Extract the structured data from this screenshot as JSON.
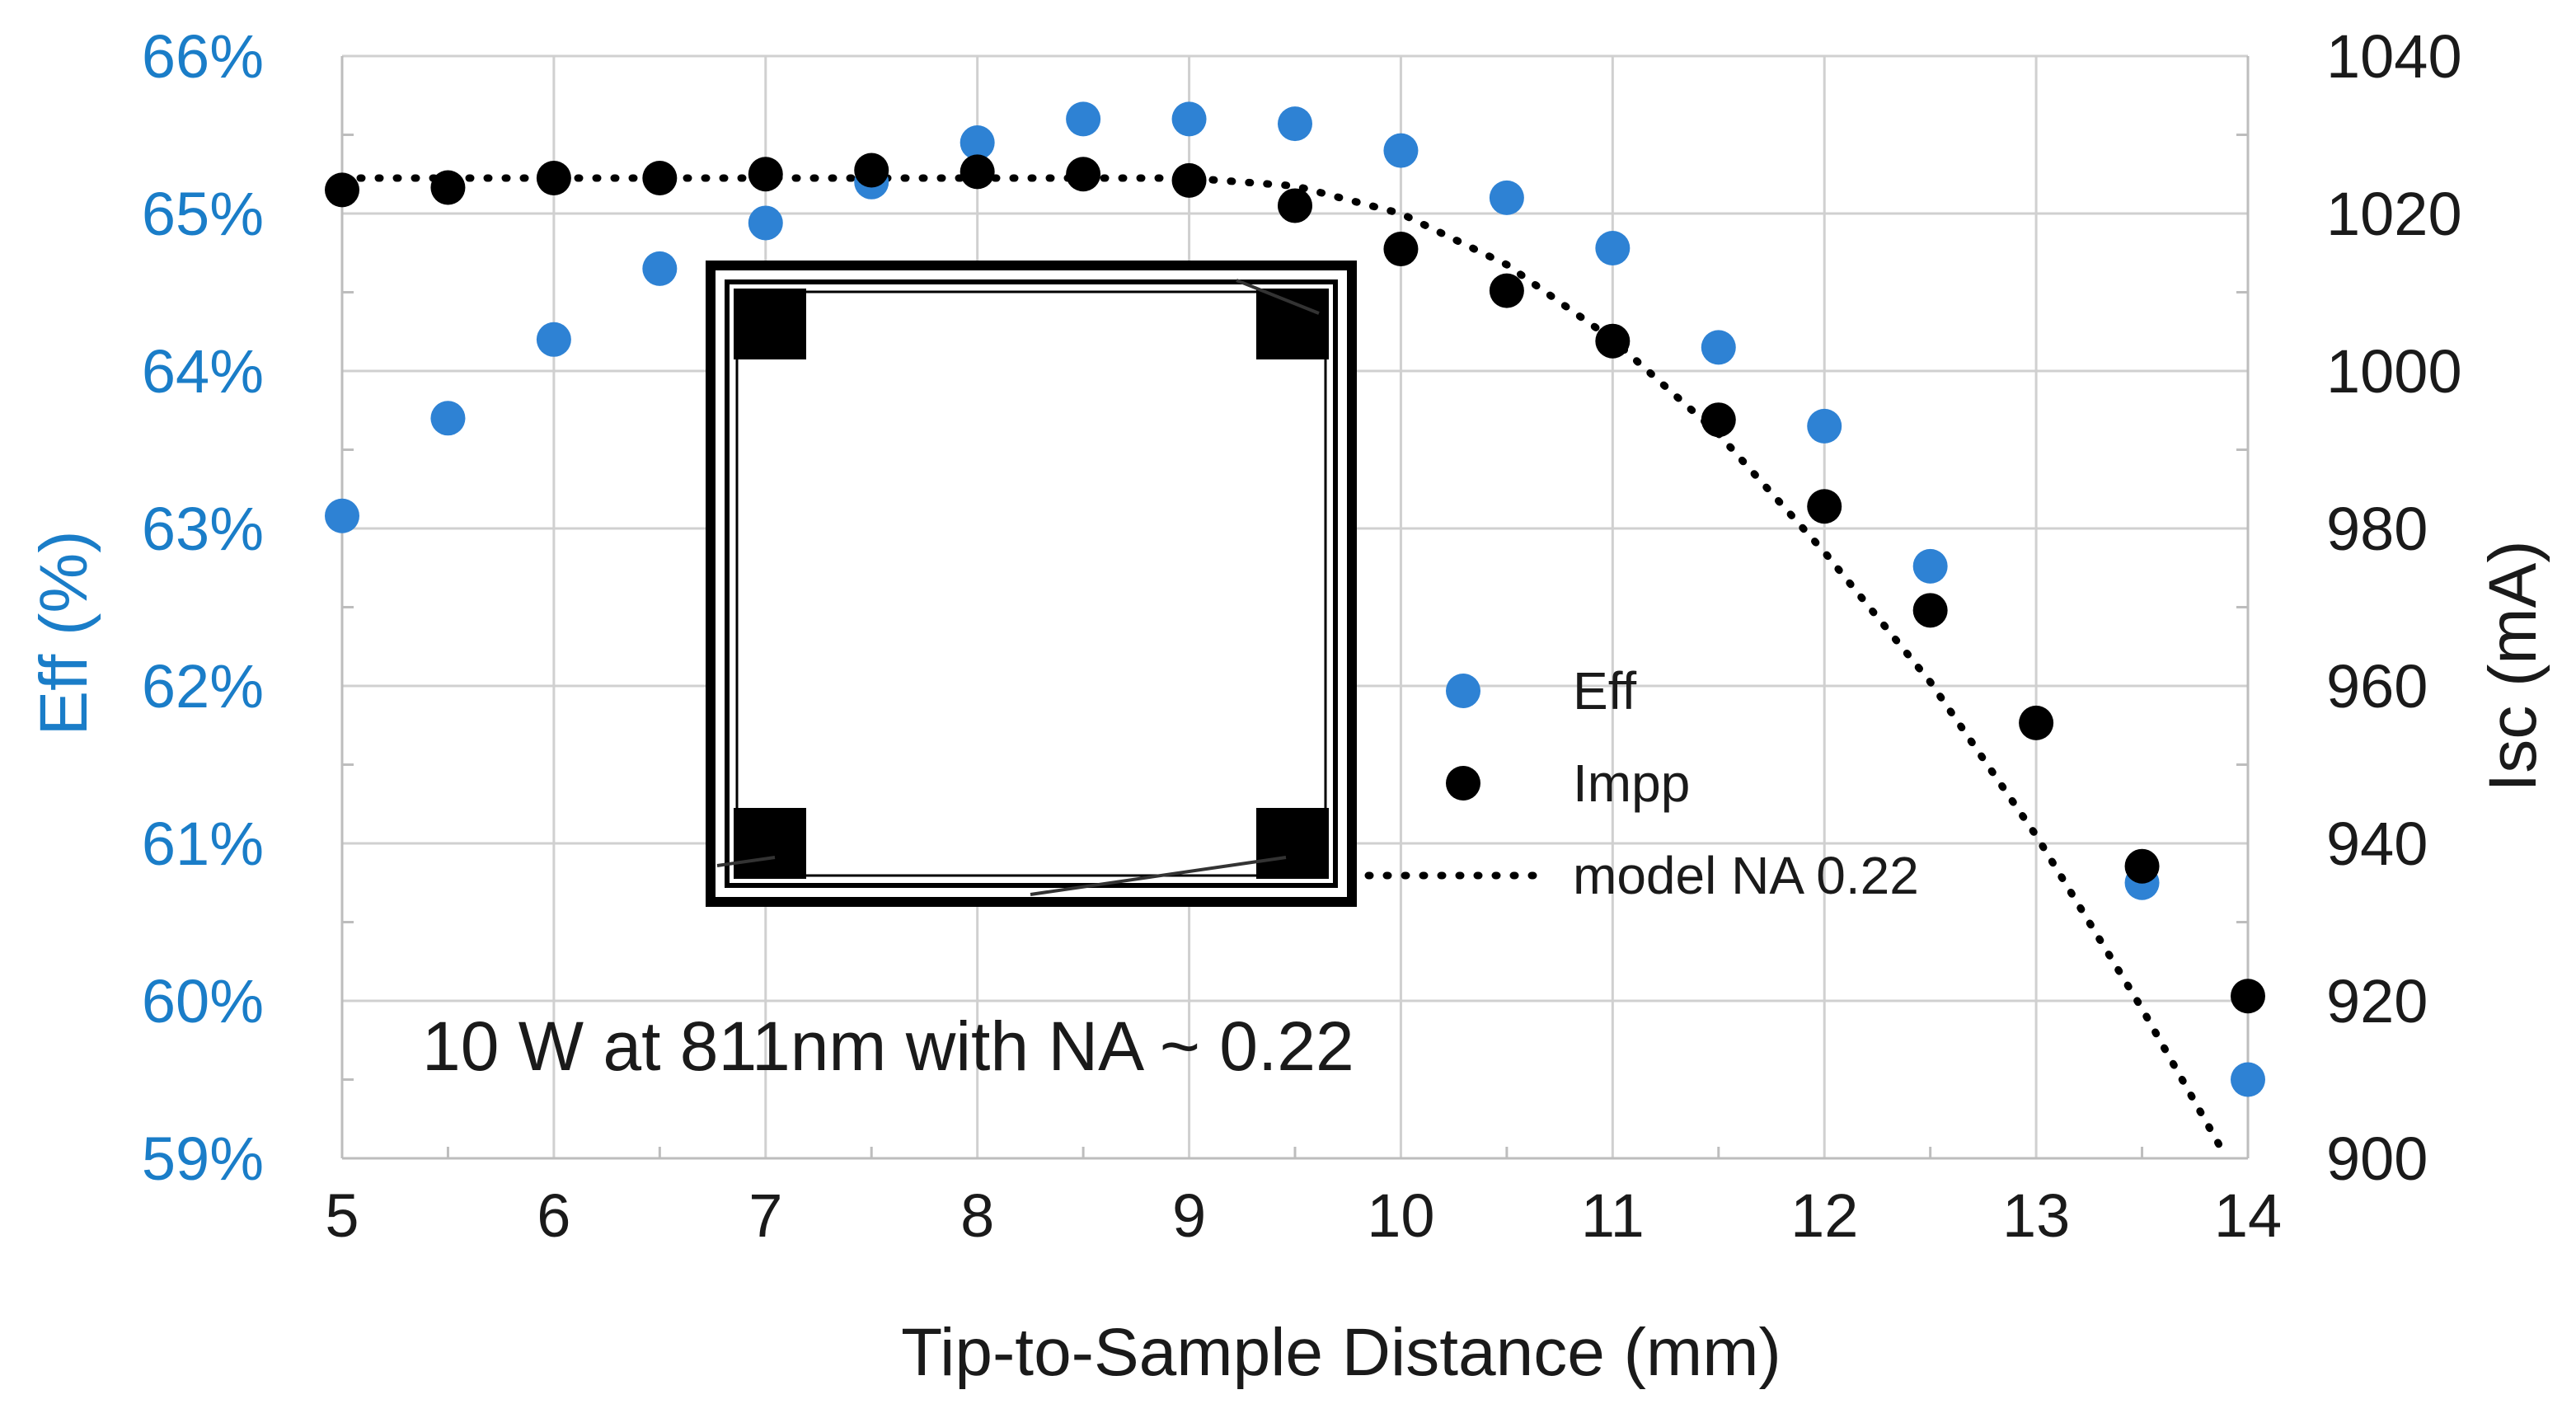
{
  "chart_data": {
    "type": "scatter",
    "x_axis": {
      "label": "Tip-to-Sample Distance (mm)",
      "range": [
        5,
        14
      ],
      "ticks": [
        5,
        6,
        7,
        8,
        9,
        10,
        11,
        12,
        13,
        14
      ],
      "tick_labels": [
        "5",
        "6",
        "7",
        "8",
        "9",
        "10",
        "11",
        "12",
        "13",
        "14"
      ]
    },
    "y_left": {
      "label": "Eff (%)",
      "range": [
        59,
        66
      ],
      "ticks": [
        59,
        60,
        61,
        62,
        63,
        64,
        65,
        66
      ],
      "tick_labels": [
        "59%",
        "60%",
        "61%",
        "62%",
        "63%",
        "64%",
        "65%",
        "66%"
      ]
    },
    "y_right": {
      "label": "Isc (mA)",
      "range": [
        900,
        1040
      ],
      "ticks": [
        900,
        920,
        940,
        960,
        980,
        1000,
        1020,
        1040
      ],
      "tick_labels": [
        "900",
        "920",
        "940",
        "960",
        "980",
        "1000",
        "1020",
        "1040"
      ]
    },
    "grid": true,
    "legend_position": "center-right",
    "annotation": "10 W at 811nm with NA ~ 0.22",
    "series": [
      {
        "name": "Eff",
        "axis": "left",
        "style": "markers",
        "color": "#2e82d4",
        "x": [
          5,
          5.5,
          6,
          6.5,
          7,
          7.5,
          8,
          8.5,
          9,
          9.5,
          10,
          10.5,
          11,
          11.5,
          12,
          12.5,
          13.5,
          14
        ],
        "y": [
          63.08,
          63.7,
          64.2,
          64.65,
          64.94,
          65.2,
          65.45,
          65.6,
          65.6,
          65.57,
          65.4,
          65.1,
          64.78,
          64.15,
          63.65,
          62.76,
          60.75,
          59.5
        ]
      },
      {
        "name": "Impp",
        "axis": "right",
        "style": "markers",
        "color": "#000000",
        "x": [
          5,
          5.5,
          6,
          6.5,
          7,
          7.5,
          8,
          8.5,
          9,
          9.5,
          10,
          10.5,
          11,
          11.5,
          12,
          12.5,
          13,
          13.5,
          14
        ],
        "y": [
          1023,
          1023.3,
          1024.5,
          1024.5,
          1025,
          1025.5,
          1025.3,
          1025,
          1024.2,
          1021,
          1015.5,
          1010.2,
          1003.8,
          993.8,
          982.8,
          969.6,
          955.3,
          937.1,
          920.6
        ]
      },
      {
        "name": "model NA 0.22",
        "axis": "right",
        "style": "dotted-line",
        "color": "#000000",
        "x": [
          5,
          6,
          7,
          8,
          9,
          9.5,
          10,
          10.5,
          11,
          11.5,
          12,
          12.5,
          13,
          13.5,
          13.9
        ],
        "y": [
          1024.5,
          1024.5,
          1024.5,
          1024.5,
          1024.5,
          1023.5,
          1020,
          1013.5,
          1004,
          992,
          977,
          960.5,
          941,
          919,
          900
        ]
      }
    ]
  }
}
